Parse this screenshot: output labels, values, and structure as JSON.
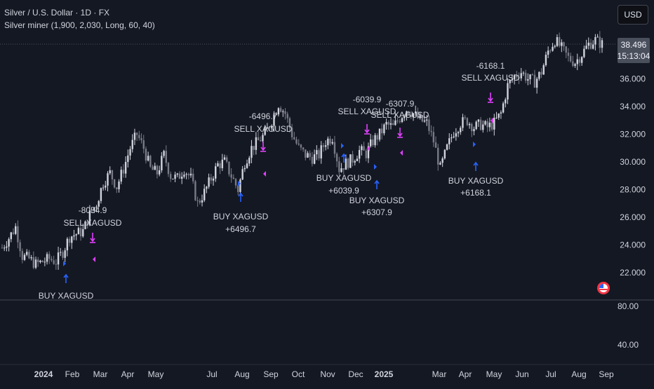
{
  "header": {
    "symbol_line": "Silver / U.S. Dollar · 1D · FX",
    "indicator_line": "Silver miner (1,900, 2,030, Long, 60, 40)"
  },
  "toolbar": {
    "currency_label": "USD"
  },
  "last_price": {
    "value": "38.496",
    "countdown": "15:13:04"
  },
  "colors": {
    "background": "#141823",
    "candle": "#b2b5be",
    "buy_arrow": "#2962ff",
    "sell_arrow": "#e040fb",
    "text": "#d1d4dc"
  },
  "chart_data": {
    "type": "line",
    "symbol": "XAGUSD",
    "price_axis": {
      "ticks": [
        "36.000",
        "34.000",
        "32.000",
        "30.000",
        "28.000",
        "26.000",
        "24.000",
        "22.000"
      ],
      "range": [
        20.5,
        40.0
      ]
    },
    "oscillator_axis": {
      "ticks": [
        "80.00",
        "40.00"
      ]
    },
    "time_axis": [
      "2024",
      "Feb",
      "Mar",
      "Apr",
      "May",
      "Jul",
      "Aug",
      "Sep",
      "Oct",
      "Nov",
      "Dec",
      "2025",
      "Mar",
      "Apr",
      "May",
      "Jun",
      "Jul",
      "Aug",
      "Sep"
    ],
    "series": [
      {
        "values": [
          23.8,
          24.5,
          25.3,
          23.2,
          23.0,
          22.6,
          22.8,
          23.0,
          22.8,
          23.5,
          24.6,
          24.8,
          25.0,
          26.2,
          27.0,
          28.5,
          29.2,
          28.2,
          29.5,
          31.0,
          32.0,
          31.0,
          29.5,
          29.2,
          30.5,
          29.0,
          28.8,
          29.5,
          28.8,
          27.0,
          27.8,
          28.8,
          29.8,
          30.0,
          29.0,
          28.0,
          30.0,
          31.0,
          31.5,
          32.0,
          33.0,
          34.2,
          33.5,
          32.0,
          31.0,
          30.5,
          30.3,
          30.5,
          31.5,
          31.8,
          29.5,
          29.9,
          30.2,
          30.8,
          30.6,
          31.5,
          32.0,
          32.7,
          32.5,
          33.2,
          33.8,
          33.5,
          33.0,
          32.8,
          31.5,
          29.5,
          31.0,
          32.2,
          32.8,
          33.0,
          32.5,
          32.7,
          32.5,
          32.8,
          33.5,
          35.5,
          36.2,
          36.5,
          36.0,
          35.8,
          36.5,
          38.0,
          38.8,
          38.2,
          37.5,
          37.2,
          37.8,
          38.5,
          38.8,
          38.5
        ]
      }
    ],
    "signals": [
      {
        "type": "sell",
        "value": "-8054.9",
        "label": "SELL XAGUSD"
      },
      {
        "type": "buy",
        "value": "",
        "label": "BUY XAGUSD"
      },
      {
        "type": "sell",
        "value": "-6496.7",
        "label": "SELL XAGUSD"
      },
      {
        "type": "buy",
        "value": "+6496.7",
        "label": "BUY XAGUSD"
      },
      {
        "type": "sell",
        "value": "-6039.9",
        "label": "SELL XAGUSD"
      },
      {
        "type": "buy",
        "value": "+6039.9",
        "label": "BUY XAGUSD"
      },
      {
        "type": "sell",
        "value": "-6307.9",
        "label": "SELL XAGUSD"
      },
      {
        "type": "buy",
        "value": "+6307.9",
        "label": "BUY XAGUSD"
      },
      {
        "type": "sell",
        "value": "-6168.1",
        "label": "SELL XAGUSD"
      },
      {
        "type": "buy",
        "value": "+6168.1",
        "label": "BUY XAGUSD"
      }
    ]
  }
}
